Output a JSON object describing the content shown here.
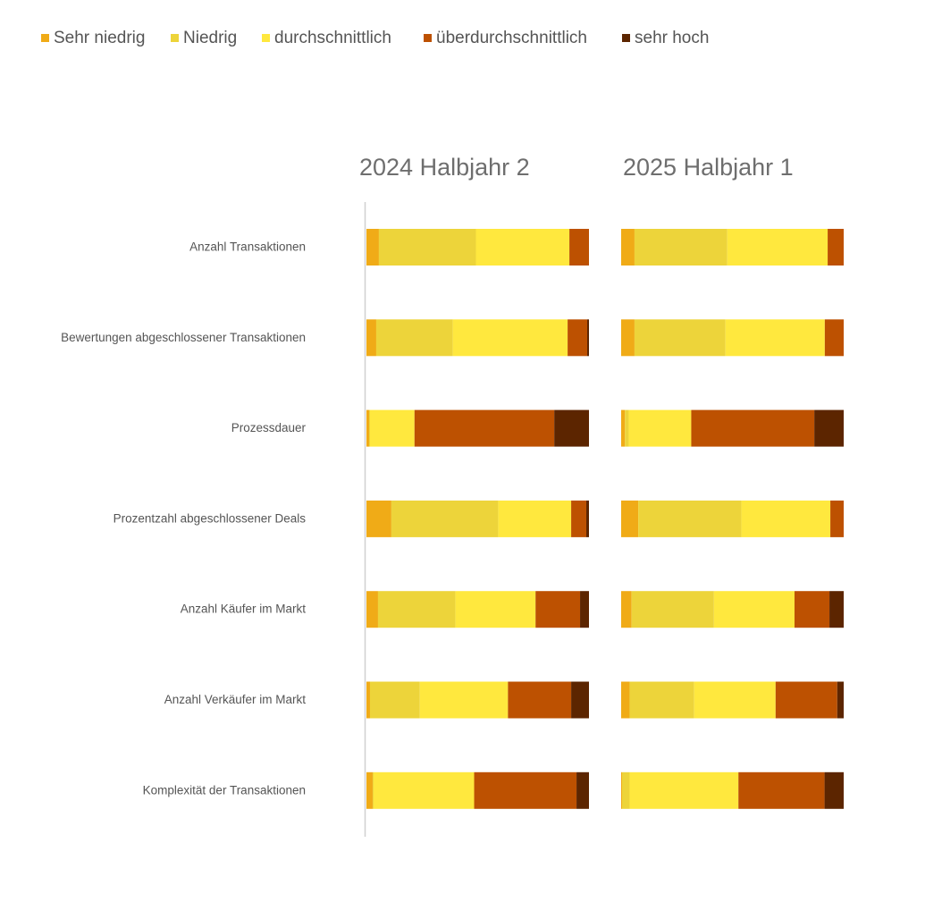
{
  "chart_data": {
    "type": "bar",
    "orientation": "horizontal",
    "stacked": "100%",
    "legend": {
      "placement": "top-left",
      "entries": [
        "Sehr niedrig",
        "Niedrig",
        "durchschnittlich",
        "überdurchschnittlich",
        "sehr hoch"
      ]
    },
    "colors": [
      "#F0AB17",
      "#EDD43A",
      "#FFE83E",
      "#BD5101",
      "#5C2500"
    ],
    "categories": [
      "Anzahl Transaktionen",
      "Bewertungen abgeschlossener Transaktionen",
      "Prozessdauer",
      "Prozentzahl abgeschlossener Deals",
      "Anzahl Käufer im Markt",
      "Anzahl Verkäufer im Markt",
      "Komplexität der Transaktionen"
    ],
    "panels": [
      {
        "title": "2024 Halbjahr 2",
        "series": [
          {
            "name": "Sehr niedrig",
            "values": [
              5.6,
              4.4,
              1.2,
              11.2,
              5.2,
              1.6,
              2.8
            ]
          },
          {
            "name": "Niedrig",
            "values": [
              43.6,
              34.4,
              0.4,
              48.0,
              34.8,
              22.4,
              0.4
            ]
          },
          {
            "name": "durchschnittlich",
            "values": [
              42.0,
              51.6,
              20.0,
              32.8,
              36.0,
              39.6,
              45.2
            ]
          },
          {
            "name": "überdurchschnittlich",
            "values": [
              8.8,
              8.8,
              62.8,
              6.8,
              20.0,
              28.4,
              46.0
            ]
          },
          {
            "name": "sehr hoch",
            "values": [
              0,
              0.8,
              15.6,
              1.2,
              4.0,
              8.0,
              5.6
            ]
          }
        ]
      },
      {
        "title": "2025 Halbjahr 1",
        "series": [
          {
            "name": "Sehr niedrig",
            "values": [
              6.0,
              6.0,
              1.7,
              7.7,
              4.7,
              3.8,
              0.4
            ]
          },
          {
            "name": "Niedrig",
            "values": [
              41.7,
              40.9,
              1.7,
              46.4,
              37.0,
              29.0,
              3.4
            ]
          },
          {
            "name": "durchschnittlich",
            "values": [
              45.1,
              44.7,
              28.1,
              40.0,
              36.2,
              36.6,
              48.9
            ]
          },
          {
            "name": "überdurchschnittlich",
            "values": [
              7.2,
              8.5,
              55.3,
              6.0,
              15.7,
              27.7,
              38.7
            ]
          },
          {
            "name": "sehr hoch",
            "values": [
              0,
              0,
              13.2,
              0,
              6.4,
              2.9,
              8.6
            ]
          }
        ]
      }
    ]
  }
}
